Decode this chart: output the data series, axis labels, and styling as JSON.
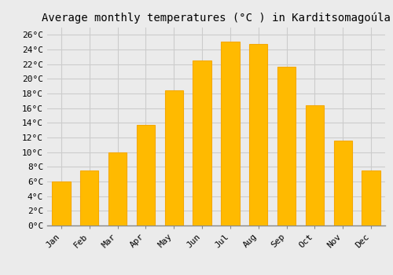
{
  "title": "Average monthly temperatures (°C ) in Karditsomagoúla",
  "months": [
    "Jan",
    "Feb",
    "Mar",
    "Apr",
    "May",
    "Jun",
    "Jul",
    "Aug",
    "Sep",
    "Oct",
    "Nov",
    "Dec"
  ],
  "values": [
    6.0,
    7.5,
    10.0,
    13.7,
    18.4,
    22.5,
    25.1,
    24.8,
    21.6,
    16.4,
    11.6,
    7.5
  ],
  "bar_color": "#FFBA00",
  "bar_color2": "#F5A800",
  "ylim": [
    0,
    27
  ],
  "yticks": [
    0,
    2,
    4,
    6,
    8,
    10,
    12,
    14,
    16,
    18,
    20,
    22,
    24,
    26
  ],
  "background_color": "#EBEBEB",
  "grid_color": "#CCCCCC",
  "title_fontsize": 10,
  "tick_fontsize": 8,
  "font_family": "monospace"
}
